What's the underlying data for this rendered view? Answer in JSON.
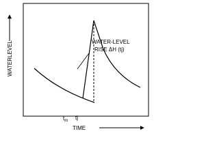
{
  "axes": {
    "y_label": "WATERLEVEL",
    "x_label": "TIME"
  },
  "annotation": {
    "line1": "WATER-LEVEL",
    "line2": "RISE ΔH (tj)"
  },
  "points": {
    "start": "t",
    "start_sub": "m",
    "end": "tj"
  }
}
